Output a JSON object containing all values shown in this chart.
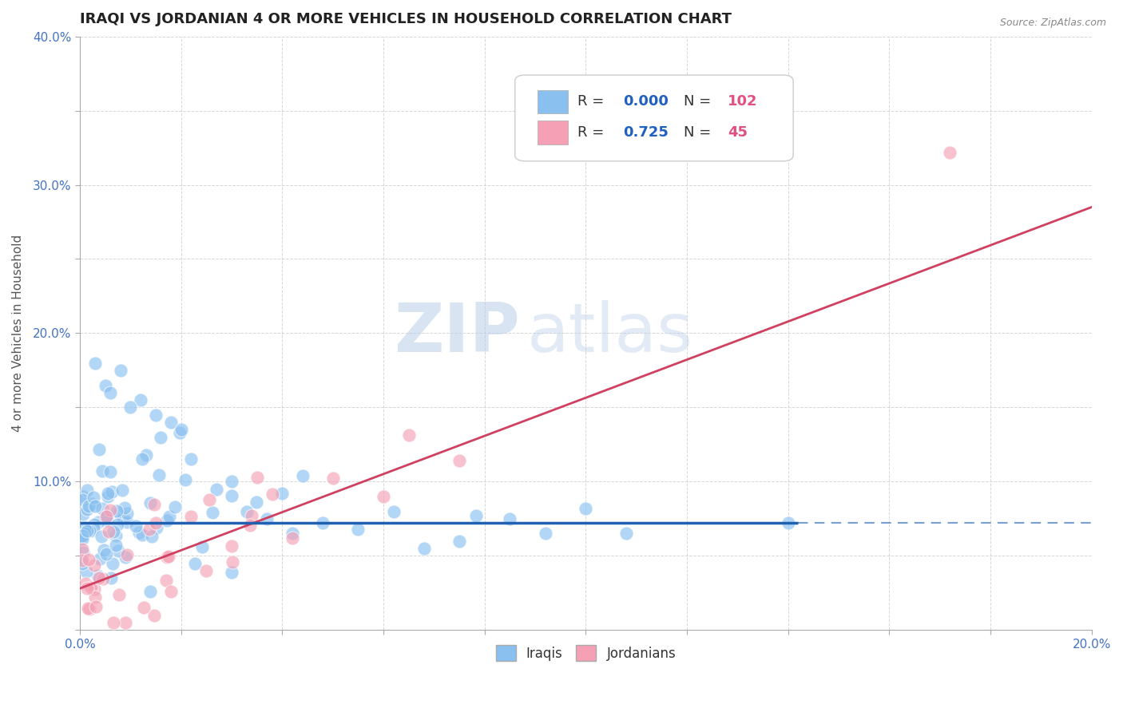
{
  "title": "IRAQI VS JORDANIAN 4 OR MORE VEHICLES IN HOUSEHOLD CORRELATION CHART",
  "source_text": "Source: ZipAtlas.com",
  "ylabel": "4 or more Vehicles in Household",
  "xlim": [
    0.0,
    0.2
  ],
  "ylim": [
    0.0,
    0.4
  ],
  "iraqi_color": "#89c0f0",
  "jordanian_color": "#f5a0b5",
  "iraqi_R": 0.0,
  "iraqi_N": 102,
  "jordanian_R": 0.725,
  "jordanian_N": 45,
  "iraqi_line_color": "#2060b0",
  "jordanian_line_color": "#d04060",
  "iraqi_line_solid_end": 0.142,
  "iraqi_line_y": 0.072,
  "jord_line_x0": 0.0,
  "jord_line_y0": 0.028,
  "jord_line_x1": 0.2,
  "jord_line_y1": 0.285,
  "watermark_zip": "ZIP",
  "watermark_atlas": "atlas",
  "title_fontsize": 13,
  "axis_fontsize": 11,
  "legend_fontsize": 13,
  "background_color": "#ffffff",
  "grid_color": "#cccccc"
}
